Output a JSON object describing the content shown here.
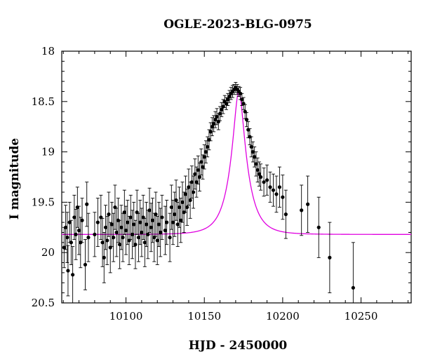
{
  "chart_data": {
    "type": "scatter",
    "title": "OGLE-2023-BLG-0975",
    "xlabel": "HJD - 2450000",
    "ylabel": "I magnitude",
    "xlim": [
      10059,
      10282
    ],
    "ylim": [
      20.5,
      18.0
    ],
    "y_inverted": true,
    "x_ticks": [
      10100,
      10150,
      10200,
      10250
    ],
    "y_ticks": [
      18,
      18.5,
      19,
      19.5,
      20,
      20.5
    ],
    "y_tick_labels": [
      "18",
      "18.5",
      "19",
      "19.5",
      "20",
      "20.5"
    ],
    "grid": false,
    "series": [
      {
        "kind": "data_with_errorbars",
        "color": "#000000",
        "points": [
          [
            10060.5,
            19.95,
            0.2
          ],
          [
            10061.5,
            19.75,
            0.22
          ],
          [
            10062.5,
            19.85,
            0.25
          ],
          [
            10063,
            20.18,
            0.25
          ],
          [
            10064,
            19.7,
            0.2
          ],
          [
            10065,
            19.9,
            0.22
          ],
          [
            10066,
            20.22,
            0.28
          ],
          [
            10067,
            19.65,
            0.22
          ],
          [
            10068,
            19.82,
            0.25
          ],
          [
            10069,
            19.55,
            0.2
          ],
          [
            10070,
            19.78,
            0.24
          ],
          [
            10071,
            19.9,
            0.25
          ],
          [
            10072,
            19.68,
            0.22
          ],
          [
            10074,
            20.12,
            0.25
          ],
          [
            10075,
            19.52,
            0.22
          ],
          [
            10076,
            19.85,
            0.24
          ],
          [
            10080,
            19.82,
            0.22
          ],
          [
            10082,
            19.7,
            0.24
          ],
          [
            10084,
            19.65,
            0.22
          ],
          [
            10085,
            19.9,
            0.24
          ],
          [
            10086,
            20.05,
            0.25
          ],
          [
            10087,
            19.75,
            0.22
          ],
          [
            10088,
            19.88,
            0.24
          ],
          [
            10089,
            19.62,
            0.22
          ],
          [
            10090,
            19.95,
            0.25
          ],
          [
            10091,
            19.72,
            0.22
          ],
          [
            10092,
            19.85,
            0.24
          ],
          [
            10093,
            19.55,
            0.22
          ],
          [
            10094,
            19.8,
            0.24
          ],
          [
            10095,
            19.68,
            0.22
          ],
          [
            10096,
            19.92,
            0.24
          ],
          [
            10097,
            19.75,
            0.22
          ],
          [
            10098,
            19.85,
            0.24
          ],
          [
            10099,
            19.6,
            0.22
          ],
          [
            10100,
            19.78,
            0.24
          ],
          [
            10101,
            19.7,
            0.22
          ],
          [
            10102,
            19.88,
            0.24
          ],
          [
            10103,
            19.65,
            0.22
          ],
          [
            10104,
            19.82,
            0.24
          ],
          [
            10105,
            19.72,
            0.22
          ],
          [
            10106,
            19.92,
            0.24
          ],
          [
            10107,
            19.6,
            0.22
          ],
          [
            10108,
            19.85,
            0.24
          ],
          [
            10109,
            19.7,
            0.22
          ],
          [
            10110,
            19.8,
            0.24
          ],
          [
            10111,
            19.65,
            0.22
          ],
          [
            10112,
            19.9,
            0.24
          ],
          [
            10113,
            19.72,
            0.22
          ],
          [
            10114,
            19.82,
            0.24
          ],
          [
            10115,
            19.58,
            0.22
          ],
          [
            10116,
            19.75,
            0.24
          ],
          [
            10117,
            19.68,
            0.22
          ],
          [
            10118,
            19.85,
            0.24
          ],
          [
            10119,
            19.62,
            0.22
          ],
          [
            10120,
            19.88,
            0.24
          ],
          [
            10121,
            19.72,
            0.22
          ],
          [
            10122,
            19.8,
            0.24
          ],
          [
            10123,
            19.65,
            0.22
          ],
          [
            10125,
            19.78,
            0.24
          ],
          [
            10126,
            19.7,
            0.22
          ],
          [
            10128,
            19.85,
            0.24
          ],
          [
            10129,
            19.55,
            0.22
          ],
          [
            10130,
            19.7,
            0.22
          ],
          [
            10131,
            19.62,
            0.22
          ],
          [
            10132,
            19.48,
            0.2
          ],
          [
            10133,
            19.72,
            0.22
          ],
          [
            10134,
            19.55,
            0.2
          ],
          [
            10135,
            19.68,
            0.22
          ],
          [
            10136,
            19.5,
            0.2
          ],
          [
            10137,
            19.6,
            0.2
          ],
          [
            10138,
            19.42,
            0.18
          ],
          [
            10139,
            19.55,
            0.18
          ],
          [
            10140,
            19.35,
            0.18
          ],
          [
            10141,
            19.48,
            0.18
          ],
          [
            10142,
            19.3,
            0.16
          ],
          [
            10143,
            19.4,
            0.16
          ],
          [
            10144,
            19.22,
            0.15
          ],
          [
            10145,
            19.3,
            0.15
          ],
          [
            10146,
            19.18,
            0.14
          ],
          [
            10147,
            19.25,
            0.14
          ],
          [
            10148,
            19.1,
            0.13
          ],
          [
            10149,
            19.15,
            0.12
          ],
          [
            10150,
            19.05,
            0.12
          ],
          [
            10151,
            19.0,
            0.11
          ],
          [
            10152,
            18.95,
            0.1
          ],
          [
            10153,
            18.88,
            0.1
          ],
          [
            10154,
            18.8,
            0.09
          ],
          [
            10155,
            18.75,
            0.09
          ],
          [
            10156,
            18.72,
            0.08
          ],
          [
            10157,
            18.68,
            0.08
          ],
          [
            10158,
            18.65,
            0.08
          ],
          [
            10159,
            18.7,
            0.08
          ],
          [
            10160,
            18.62,
            0.07
          ],
          [
            10161,
            18.58,
            0.07
          ],
          [
            10162,
            18.55,
            0.07
          ],
          [
            10163,
            18.5,
            0.06
          ],
          [
            10164,
            18.52,
            0.06
          ],
          [
            10165,
            18.48,
            0.06
          ],
          [
            10166,
            18.45,
            0.06
          ],
          [
            10167,
            18.42,
            0.06
          ],
          [
            10168,
            18.4,
            0.06
          ],
          [
            10169,
            18.38,
            0.05
          ],
          [
            10170,
            18.36,
            0.05
          ],
          [
            10171,
            18.38,
            0.05
          ],
          [
            10172,
            18.4,
            0.05
          ],
          [
            10173,
            18.42,
            0.06
          ],
          [
            10174,
            18.48,
            0.06
          ],
          [
            10175,
            18.52,
            0.06
          ],
          [
            10176,
            18.6,
            0.07
          ],
          [
            10177,
            18.68,
            0.07
          ],
          [
            10178,
            18.78,
            0.08
          ],
          [
            10179,
            18.85,
            0.08
          ],
          [
            10180,
            18.95,
            0.1
          ],
          [
            10181,
            19.0,
            0.1
          ],
          [
            10182,
            19.05,
            0.1
          ],
          [
            10183,
            19.12,
            0.12
          ],
          [
            10184,
            19.18,
            0.12
          ],
          [
            10185,
            19.22,
            0.12
          ],
          [
            10186,
            19.25,
            0.13
          ],
          [
            10188,
            19.3,
            0.14
          ],
          [
            10190,
            19.28,
            0.15
          ],
          [
            10192,
            19.35,
            0.15
          ],
          [
            10194,
            19.38,
            0.16
          ],
          [
            10196,
            19.42,
            0.18
          ],
          [
            10198,
            19.35,
            0.2
          ],
          [
            10200,
            19.45,
            0.22
          ],
          [
            10202,
            19.62,
            0.24
          ],
          [
            10212,
            19.58,
            0.25
          ],
          [
            10216,
            19.52,
            0.28
          ],
          [
            10223,
            19.75,
            0.3
          ],
          [
            10230,
            20.05,
            0.35
          ],
          [
            10245,
            20.35,
            0.45
          ]
        ]
      },
      {
        "kind": "model",
        "color": "#e000e0",
        "model": {
          "baseline_mag": 19.82,
          "peak_mag": 18.4,
          "t0": 10172,
          "tE": 10.5
        }
      }
    ]
  }
}
